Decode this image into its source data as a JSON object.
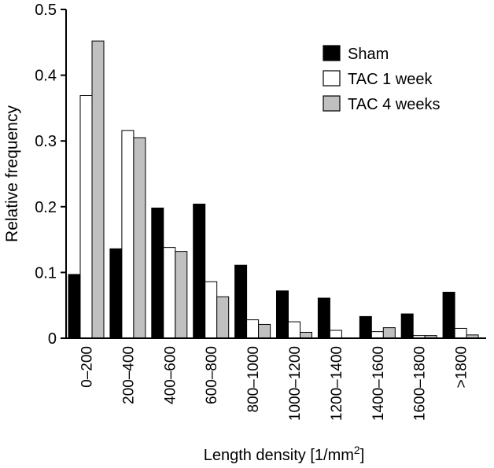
{
  "chart_data": {
    "type": "bar",
    "categories": [
      "0–200",
      "200–400",
      "400–600",
      "600–800",
      "800–1000",
      "1000–1200",
      "1200–1400",
      "1400–1600",
      "1600–1800",
      ">1800"
    ],
    "series": [
      {
        "name": "Sham",
        "color": "#000000",
        "values": [
          0.097,
          0.136,
          0.198,
          0.204,
          0.111,
          0.072,
          0.061,
          0.033,
          0.037,
          0.07
        ]
      },
      {
        "name": "TAC 1 week",
        "color": "#ffffff",
        "values": [
          0.369,
          0.316,
          0.138,
          0.086,
          0.028,
          0.025,
          0.012,
          0.01,
          0.004,
          0.015
        ]
      },
      {
        "name": "TAC 4 weeks",
        "color": "#c0c0c0",
        "values": [
          0.452,
          0.305,
          0.132,
          0.063,
          0.021,
          0.009,
          0.0,
          0.016,
          0.004,
          0.005
        ]
      }
    ],
    "yticks": [
      "0",
      "0.1",
      "0.2",
      "0.3",
      "0.4",
      "0.5"
    ],
    "ylim": [
      0,
      0.5
    ],
    "xlabel": "Length density [1/mm",
    "xlabel_sup": "2",
    "xlabel_close": "]",
    "ylabel": "Relative frequency",
    "legend_position": "top-right",
    "grid": false
  }
}
